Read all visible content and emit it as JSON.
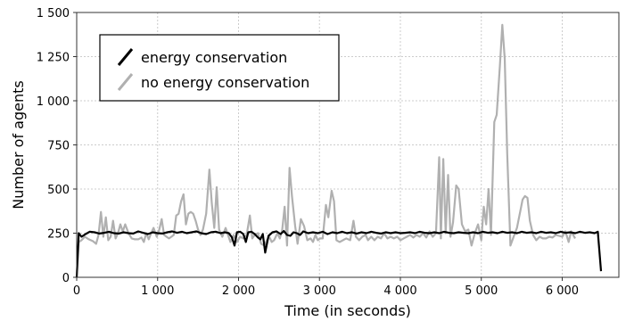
{
  "chart_data": {
    "type": "line",
    "title": "",
    "xlabel": "Time (in seconds)",
    "ylabel": "Number of agents",
    "xlim": [
      0,
      6700
    ],
    "ylim": [
      0,
      1500
    ],
    "x_ticks": [
      0,
      1000,
      2000,
      3000,
      4000,
      5000,
      6000
    ],
    "x_tick_labels": [
      "0",
      "1 000",
      "2 000",
      "3 000",
      "4 000",
      "5 000",
      "6 000"
    ],
    "y_ticks": [
      0,
      250,
      500,
      750,
      1000,
      1250,
      1500
    ],
    "y_tick_labels": [
      "0",
      "250",
      "500",
      "750",
      "1 000",
      "1 250",
      "1 500"
    ],
    "grid": true,
    "legend_position": "top-left",
    "series": [
      {
        "name": "energy conservation",
        "color": "#000000",
        "points": [
          [
            0,
            0
          ],
          [
            25,
            250
          ],
          [
            60,
            230
          ],
          [
            110,
            245
          ],
          [
            160,
            258
          ],
          [
            220,
            255
          ],
          [
            280,
            248
          ],
          [
            340,
            252
          ],
          [
            400,
            258
          ],
          [
            460,
            250
          ],
          [
            520,
            248
          ],
          [
            580,
            255
          ],
          [
            640,
            250
          ],
          [
            700,
            248
          ],
          [
            760,
            260
          ],
          [
            820,
            252
          ],
          [
            880,
            245
          ],
          [
            940,
            255
          ],
          [
            1000,
            250
          ],
          [
            1060,
            248
          ],
          [
            1120,
            255
          ],
          [
            1180,
            260
          ],
          [
            1240,
            252
          ],
          [
            1300,
            258
          ],
          [
            1360,
            250
          ],
          [
            1420,
            255
          ],
          [
            1480,
            260
          ],
          [
            1540,
            250
          ],
          [
            1600,
            245
          ],
          [
            1660,
            255
          ],
          [
            1720,
            258
          ],
          [
            1780,
            250
          ],
          [
            1830,
            255
          ],
          [
            1880,
            250
          ],
          [
            1920,
            225
          ],
          [
            1950,
            180
          ],
          [
            1980,
            255
          ],
          [
            2020,
            258
          ],
          [
            2060,
            245
          ],
          [
            2090,
            200
          ],
          [
            2120,
            255
          ],
          [
            2160,
            258
          ],
          [
            2200,
            245
          ],
          [
            2240,
            225
          ],
          [
            2270,
            215
          ],
          [
            2300,
            245
          ],
          [
            2330,
            140
          ],
          [
            2370,
            235
          ],
          [
            2420,
            255
          ],
          [
            2470,
            260
          ],
          [
            2520,
            245
          ],
          [
            2560,
            262
          ],
          [
            2600,
            240
          ],
          [
            2640,
            235
          ],
          [
            2680,
            255
          ],
          [
            2720,
            250
          ],
          [
            2760,
            240
          ],
          [
            2800,
            260
          ],
          [
            2860,
            250
          ],
          [
            2920,
            255
          ],
          [
            2980,
            250
          ],
          [
            3040,
            258
          ],
          [
            3100,
            245
          ],
          [
            3160,
            255
          ],
          [
            3220,
            250
          ],
          [
            3280,
            258
          ],
          [
            3340,
            250
          ],
          [
            3400,
            255
          ],
          [
            3460,
            248
          ],
          [
            3520,
            255
          ],
          [
            3580,
            250
          ],
          [
            3640,
            258
          ],
          [
            3700,
            252
          ],
          [
            3760,
            248
          ],
          [
            3820,
            255
          ],
          [
            3880,
            250
          ],
          [
            3940,
            255
          ],
          [
            4000,
            250
          ],
          [
            4060,
            252
          ],
          [
            4120,
            255
          ],
          [
            4180,
            250
          ],
          [
            4240,
            258
          ],
          [
            4300,
            252
          ],
          [
            4360,
            250
          ],
          [
            4420,
            255
          ],
          [
            4480,
            250
          ],
          [
            4540,
            258
          ],
          [
            4600,
            252
          ],
          [
            4660,
            250
          ],
          [
            4720,
            255
          ],
          [
            4780,
            252
          ],
          [
            4840,
            250
          ],
          [
            4900,
            255
          ],
          [
            4960,
            250
          ],
          [
            5020,
            258
          ],
          [
            5080,
            252
          ],
          [
            5140,
            255
          ],
          [
            5200,
            250
          ],
          [
            5260,
            258
          ],
          [
            5320,
            252
          ],
          [
            5380,
            255
          ],
          [
            5440,
            250
          ],
          [
            5500,
            258
          ],
          [
            5560,
            252
          ],
          [
            5620,
            255
          ],
          [
            5680,
            250
          ],
          [
            5740,
            258
          ],
          [
            5800,
            252
          ],
          [
            5860,
            255
          ],
          [
            5920,
            250
          ],
          [
            5980,
            258
          ],
          [
            6040,
            252
          ],
          [
            6100,
            255
          ],
          [
            6160,
            250
          ],
          [
            6220,
            258
          ],
          [
            6280,
            252
          ],
          [
            6340,
            255
          ],
          [
            6400,
            250
          ],
          [
            6440,
            258
          ],
          [
            6480,
            35
          ]
        ]
      },
      {
        "name": "no energy conservation",
        "color": "#b0b0b0",
        "points": [
          [
            0,
            0
          ],
          [
            25,
            200
          ],
          [
            60,
            210
          ],
          [
            100,
            230
          ],
          [
            150,
            215
          ],
          [
            200,
            205
          ],
          [
            240,
            190
          ],
          [
            270,
            240
          ],
          [
            300,
            370
          ],
          [
            330,
            230
          ],
          [
            360,
            340
          ],
          [
            390,
            210
          ],
          [
            420,
            230
          ],
          [
            450,
            320
          ],
          [
            480,
            220
          ],
          [
            510,
            250
          ],
          [
            540,
            300
          ],
          [
            570,
            260
          ],
          [
            600,
            300
          ],
          [
            640,
            250
          ],
          [
            680,
            220
          ],
          [
            720,
            215
          ],
          [
            760,
            215
          ],
          [
            800,
            225
          ],
          [
            830,
            200
          ],
          [
            860,
            250
          ],
          [
            890,
            215
          ],
          [
            920,
            250
          ],
          [
            950,
            280
          ],
          [
            990,
            230
          ],
          [
            1020,
            270
          ],
          [
            1050,
            330
          ],
          [
            1080,
            240
          ],
          [
            1110,
            230
          ],
          [
            1140,
            220
          ],
          [
            1170,
            230
          ],
          [
            1200,
            240
          ],
          [
            1230,
            350
          ],
          [
            1260,
            360
          ],
          [
            1290,
            430
          ],
          [
            1320,
            470
          ],
          [
            1350,
            300
          ],
          [
            1380,
            360
          ],
          [
            1410,
            370
          ],
          [
            1440,
            360
          ],
          [
            1470,
            320
          ],
          [
            1500,
            270
          ],
          [
            1530,
            240
          ],
          [
            1560,
            270
          ],
          [
            1600,
            360
          ],
          [
            1640,
            610
          ],
          [
            1670,
            420
          ],
          [
            1700,
            280
          ],
          [
            1730,
            510
          ],
          [
            1760,
            270
          ],
          [
            1800,
            230
          ],
          [
            1840,
            280
          ],
          [
            1870,
            240
          ],
          [
            1900,
            200
          ],
          [
            1940,
            240
          ],
          [
            1980,
            200
          ],
          [
            2020,
            230
          ],
          [
            2060,
            220
          ],
          [
            2100,
            240
          ],
          [
            2140,
            350
          ],
          [
            2170,
            220
          ],
          [
            2200,
            240
          ],
          [
            2240,
            250
          ],
          [
            2280,
            190
          ],
          [
            2320,
            180
          ],
          [
            2350,
            210
          ],
          [
            2380,
            230
          ],
          [
            2410,
            200
          ],
          [
            2440,
            210
          ],
          [
            2480,
            250
          ],
          [
            2510,
            220
          ],
          [
            2540,
            270
          ],
          [
            2570,
            400
          ],
          [
            2600,
            180
          ],
          [
            2630,
            620
          ],
          [
            2660,
            460
          ],
          [
            2700,
            290
          ],
          [
            2730,
            190
          ],
          [
            2770,
            330
          ],
          [
            2810,
            290
          ],
          [
            2850,
            210
          ],
          [
            2890,
            220
          ],
          [
            2920,
            200
          ],
          [
            2950,
            240
          ],
          [
            2980,
            210
          ],
          [
            3010,
            220
          ],
          [
            3040,
            220
          ],
          [
            3080,
            410
          ],
          [
            3110,
            340
          ],
          [
            3150,
            490
          ],
          [
            3180,
            430
          ],
          [
            3210,
            210
          ],
          [
            3250,
            200
          ],
          [
            3290,
            210
          ],
          [
            3330,
            220
          ],
          [
            3380,
            210
          ],
          [
            3420,
            320
          ],
          [
            3450,
            230
          ],
          [
            3490,
            210
          ],
          [
            3530,
            230
          ],
          [
            3570,
            240
          ],
          [
            3600,
            210
          ],
          [
            3640,
            230
          ],
          [
            3680,
            210
          ],
          [
            3720,
            230
          ],
          [
            3760,
            220
          ],
          [
            3800,
            250
          ],
          [
            3840,
            220
          ],
          [
            3880,
            230
          ],
          [
            3920,
            220
          ],
          [
            3960,
            230
          ],
          [
            4000,
            210
          ],
          [
            4040,
            220
          ],
          [
            4080,
            230
          ],
          [
            4120,
            240
          ],
          [
            4160,
            225
          ],
          [
            4200,
            240
          ],
          [
            4240,
            230
          ],
          [
            4280,
            250
          ],
          [
            4320,
            225
          ],
          [
            4360,
            260
          ],
          [
            4400,
            230
          ],
          [
            4440,
            250
          ],
          [
            4480,
            680
          ],
          [
            4500,
            220
          ],
          [
            4530,
            670
          ],
          [
            4560,
            250
          ],
          [
            4590,
            580
          ],
          [
            4620,
            230
          ],
          [
            4650,
            310
          ],
          [
            4690,
            520
          ],
          [
            4720,
            500
          ],
          [
            4760,
            300
          ],
          [
            4800,
            260
          ],
          [
            4840,
            270
          ],
          [
            4880,
            180
          ],
          [
            4920,
            250
          ],
          [
            4960,
            300
          ],
          [
            5000,
            210
          ],
          [
            5030,
            400
          ],
          [
            5060,
            300
          ],
          [
            5090,
            500
          ],
          [
            5120,
            240
          ],
          [
            5160,
            880
          ],
          [
            5190,
            920
          ],
          [
            5230,
            1200
          ],
          [
            5260,
            1430
          ],
          [
            5290,
            1240
          ],
          [
            5320,
            700
          ],
          [
            5360,
            180
          ],
          [
            5400,
            230
          ],
          [
            5440,
            280
          ],
          [
            5480,
            370
          ],
          [
            5510,
            440
          ],
          [
            5540,
            460
          ],
          [
            5570,
            450
          ],
          [
            5600,
            320
          ],
          [
            5640,
            240
          ],
          [
            5680,
            210
          ],
          [
            5720,
            230
          ],
          [
            5760,
            220
          ],
          [
            5800,
            220
          ],
          [
            5840,
            230
          ],
          [
            5880,
            225
          ],
          [
            5920,
            240
          ],
          [
            5960,
            235
          ],
          [
            6000,
            230
          ],
          [
            6040,
            260
          ],
          [
            6080,
            200
          ],
          [
            6110,
            260
          ],
          [
            6160,
            220
          ]
        ]
      }
    ]
  }
}
